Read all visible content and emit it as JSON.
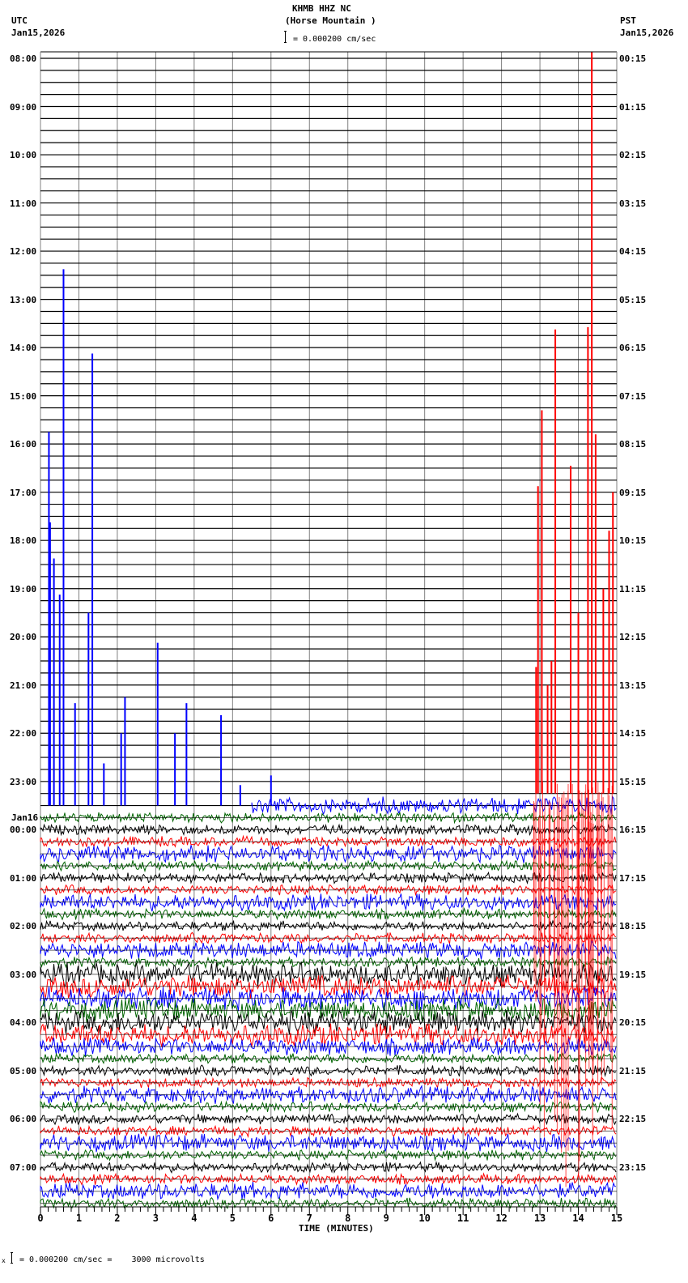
{
  "header": {
    "station": "KHMB HHZ NC",
    "location": "(Horse Mountain )",
    "scale_text": "= 0.000200 cm/sec",
    "left_tz": "UTC",
    "left_date": "Jan15,2026",
    "right_tz": "PST",
    "right_date": "Jan15,2026"
  },
  "footer": {
    "scale_text": "= 0.000200 cm/sec =    3000 microvolts",
    "prefix": "x"
  },
  "chart_data": {
    "type": "line",
    "title": "KHMB HHZ NC (Horse Mountain )",
    "subtitle": "I = 0.000200 cm/sec",
    "xlabel": "TIME (MINUTES)",
    "ylabel": "",
    "xlim": [
      0,
      15
    ],
    "x_ticks": [
      "0",
      "1",
      "2",
      "3",
      "4",
      "5",
      "6",
      "7",
      "8",
      "9",
      "10",
      "11",
      "12",
      "13",
      "14",
      "15"
    ],
    "grid": true,
    "traces_per_hour": 4,
    "trace_count": 96,
    "trace_colors": [
      "#000000",
      "#ff0000",
      "#0000ff",
      "#006400"
    ],
    "left_labels": [
      {
        "row": 0,
        "text": "08:00"
      },
      {
        "row": 4,
        "text": "09:00"
      },
      {
        "row": 8,
        "text": "10:00"
      },
      {
        "row": 12,
        "text": "11:00"
      },
      {
        "row": 16,
        "text": "12:00"
      },
      {
        "row": 20,
        "text": "13:00"
      },
      {
        "row": 24,
        "text": "14:00"
      },
      {
        "row": 28,
        "text": "15:00"
      },
      {
        "row": 32,
        "text": "16:00"
      },
      {
        "row": 36,
        "text": "17:00"
      },
      {
        "row": 40,
        "text": "18:00"
      },
      {
        "row": 44,
        "text": "19:00"
      },
      {
        "row": 48,
        "text": "20:00"
      },
      {
        "row": 52,
        "text": "21:00"
      },
      {
        "row": 56,
        "text": "22:00"
      },
      {
        "row": 60,
        "text": "23:00"
      },
      {
        "row": 64,
        "text": "00:00",
        "date": "Jan16"
      },
      {
        "row": 68,
        "text": "01:00"
      },
      {
        "row": 72,
        "text": "02:00"
      },
      {
        "row": 76,
        "text": "03:00"
      },
      {
        "row": 80,
        "text": "04:00"
      },
      {
        "row": 84,
        "text": "05:00"
      },
      {
        "row": 88,
        "text": "06:00"
      },
      {
        "row": 92,
        "text": "07:00"
      }
    ],
    "right_labels": [
      {
        "row": 0,
        "text": "00:15"
      },
      {
        "row": 4,
        "text": "01:15"
      },
      {
        "row": 8,
        "text": "02:15"
      },
      {
        "row": 12,
        "text": "03:15"
      },
      {
        "row": 16,
        "text": "04:15"
      },
      {
        "row": 20,
        "text": "05:15"
      },
      {
        "row": 24,
        "text": "06:15"
      },
      {
        "row": 28,
        "text": "07:15"
      },
      {
        "row": 32,
        "text": "08:15"
      },
      {
        "row": 36,
        "text": "09:15"
      },
      {
        "row": 40,
        "text": "10:15"
      },
      {
        "row": 44,
        "text": "11:15"
      },
      {
        "row": 48,
        "text": "12:15"
      },
      {
        "row": 52,
        "text": "13:15"
      },
      {
        "row": 56,
        "text": "14:15"
      },
      {
        "row": 60,
        "text": "15:15"
      },
      {
        "row": 64,
        "text": "16:15"
      },
      {
        "row": 68,
        "text": "17:15"
      },
      {
        "row": 72,
        "text": "18:15"
      },
      {
        "row": 76,
        "text": "19:15"
      },
      {
        "row": 80,
        "text": "20:15"
      },
      {
        "row": 84,
        "text": "21:15"
      },
      {
        "row": 88,
        "text": "22:15"
      },
      {
        "row": 92,
        "text": "23:15"
      }
    ],
    "noise_start_row": 62,
    "noise_start_minute_on_row_62": 5.5,
    "spikes": [
      {
        "row": 62,
        "minute": 0.6,
        "top_row": 17.5,
        "color": "#0000ff"
      },
      {
        "row": 62,
        "minute": 1.35,
        "top_row": 24.5,
        "color": "#0000ff"
      },
      {
        "row": 62,
        "minute": 0.22,
        "top_row": 31.0,
        "color": "#0000ff"
      },
      {
        "row": 62,
        "minute": 0.25,
        "top_row": 38.5,
        "color": "#0000ff"
      },
      {
        "row": 62,
        "minute": 0.35,
        "top_row": 41.5,
        "color": "#0000ff"
      },
      {
        "row": 62,
        "minute": 0.5,
        "top_row": 44.5,
        "color": "#0000ff"
      },
      {
        "row": 62,
        "minute": 1.25,
        "top_row": 46.0,
        "color": "#0000ff"
      },
      {
        "row": 62,
        "minute": 3.05,
        "top_row": 48.5,
        "color": "#0000ff"
      },
      {
        "row": 62,
        "minute": 2.2,
        "top_row": 53.0,
        "color": "#0000ff"
      },
      {
        "row": 62,
        "minute": 3.8,
        "top_row": 53.5,
        "color": "#0000ff"
      },
      {
        "row": 62,
        "minute": 4.7,
        "top_row": 54.5,
        "color": "#0000ff"
      },
      {
        "row": 62,
        "minute": 0.9,
        "top_row": 53.5,
        "color": "#0000ff"
      },
      {
        "row": 62,
        "minute": 2.1,
        "top_row": 56.0,
        "color": "#0000ff"
      },
      {
        "row": 62,
        "minute": 3.5,
        "top_row": 56.0,
        "color": "#0000ff"
      },
      {
        "row": 62,
        "minute": 1.65,
        "top_row": 58.5,
        "color": "#0000ff"
      },
      {
        "row": 62,
        "minute": 6.0,
        "top_row": 59.5,
        "color": "#0000ff"
      },
      {
        "row": 62,
        "minute": 5.2,
        "top_row": 60.3,
        "color": "#0000ff"
      },
      {
        "row": 61,
        "minute": 14.35,
        "top_row": -0.5,
        "color": "#ff0000"
      },
      {
        "row": 61,
        "minute": 13.4,
        "top_row": 22.5,
        "color": "#ff0000"
      },
      {
        "row": 61,
        "minute": 14.25,
        "top_row": 22.3,
        "color": "#ff0000"
      },
      {
        "row": 61,
        "minute": 13.05,
        "top_row": 29.2,
        "color": "#ff0000"
      },
      {
        "row": 61,
        "minute": 12.95,
        "top_row": 35.5,
        "color": "#ff0000"
      },
      {
        "row": 61,
        "minute": 13.8,
        "top_row": 33.8,
        "color": "#ff0000"
      },
      {
        "row": 61,
        "minute": 14.45,
        "top_row": 31.2,
        "color": "#ff0000"
      },
      {
        "row": 61,
        "minute": 14.9,
        "top_row": 36.0,
        "color": "#ff0000"
      },
      {
        "row": 61,
        "minute": 14.8,
        "top_row": 39.2,
        "color": "#ff0000"
      },
      {
        "row": 61,
        "minute": 14.65,
        "top_row": 44.0,
        "color": "#ff0000"
      },
      {
        "row": 61,
        "minute": 12.9,
        "top_row": 50.5,
        "color": "#ff0000"
      },
      {
        "row": 61,
        "minute": 13.3,
        "top_row": 50.0,
        "color": "#ff0000"
      },
      {
        "row": 61,
        "minute": 14.0,
        "top_row": 46.0,
        "color": "#ff0000"
      },
      {
        "row": 61,
        "minute": 13.2,
        "top_row": 52.0,
        "color": "#ff0000"
      }
    ]
  }
}
